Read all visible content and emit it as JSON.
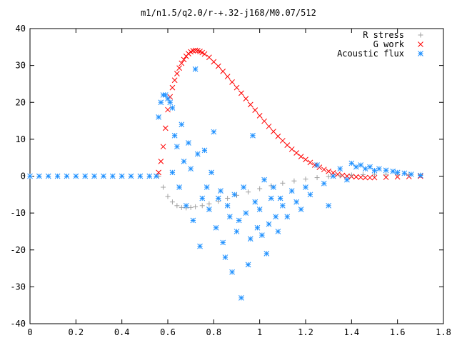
{
  "chart_data": {
    "type": "scatter",
    "title": "m1/n1.5/q2.0/r-+.32-j168/M0.07/512",
    "xlabel": "",
    "ylabel": "",
    "xlim": [
      0,
      1.8
    ],
    "ylim": [
      -40,
      40
    ],
    "x_ticks": [
      0,
      0.2,
      0.4,
      0.6,
      0.8,
      1,
      1.2,
      1.4,
      1.6,
      1.8
    ],
    "x_tick_labels": [
      "0",
      "0.2",
      "0.4",
      "0.6",
      "0.8",
      "1",
      "1.2",
      "1.4",
      "1.6",
      "1.8"
    ],
    "y_ticks": [
      -40,
      -30,
      -20,
      -10,
      0,
      10,
      20,
      30,
      40
    ],
    "y_tick_labels": [
      "-40",
      "-30",
      "-20",
      "-10",
      "0",
      "10",
      "20",
      "30",
      "40"
    ],
    "grid": false,
    "legend_position": "top-right",
    "series": [
      {
        "name": "R stress",
        "marker": "plus",
        "color": "#a0a0a0",
        "x": [
          0.56,
          0.58,
          0.6,
          0.62,
          0.64,
          0.66,
          0.68,
          0.7,
          0.72,
          0.75,
          0.78,
          0.82,
          0.86,
          0.9,
          0.95,
          1.0,
          1.05,
          1.1,
          1.15,
          1.2,
          1.25,
          1.3,
          1.35,
          1.4,
          1.45,
          1.5,
          1.55,
          1.6,
          1.65,
          1.7
        ],
        "y": [
          0.0,
          -3.0,
          -5.5,
          -7.0,
          -8.0,
          -8.5,
          -8.6,
          -8.5,
          -8.3,
          -8.0,
          -7.5,
          -6.8,
          -6.0,
          -5.2,
          -4.3,
          -3.4,
          -2.6,
          -1.9,
          -1.3,
          -0.8,
          -0.4,
          -0.1,
          0.1,
          0.3,
          0.4,
          0.5,
          0.5,
          0.5,
          0.4,
          0.3
        ]
      },
      {
        "name": "G work",
        "marker": "cross",
        "color": "#ff0000",
        "x": [
          0.56,
          0.57,
          0.58,
          0.59,
          0.6,
          0.61,
          0.62,
          0.63,
          0.64,
          0.65,
          0.66,
          0.67,
          0.68,
          0.69,
          0.7,
          0.71,
          0.72,
          0.73,
          0.74,
          0.75,
          0.76,
          0.78,
          0.8,
          0.82,
          0.84,
          0.86,
          0.88,
          0.9,
          0.92,
          0.94,
          0.96,
          0.98,
          1.0,
          1.02,
          1.04,
          1.06,
          1.08,
          1.1,
          1.12,
          1.14,
          1.16,
          1.18,
          1.2,
          1.22,
          1.24,
          1.26,
          1.28,
          1.3,
          1.32,
          1.34,
          1.36,
          1.38,
          1.4,
          1.42,
          1.44,
          1.46,
          1.48,
          1.5,
          1.55,
          1.6,
          1.65,
          1.7
        ],
        "y": [
          1.0,
          4.0,
          8.0,
          13.0,
          18.0,
          21.5,
          24.0,
          26.0,
          27.8,
          29.3,
          30.6,
          31.6,
          32.5,
          33.2,
          33.7,
          34.0,
          34.1,
          34.0,
          33.8,
          33.5,
          33.1,
          32.2,
          31.0,
          29.8,
          28.4,
          27.0,
          25.5,
          24.0,
          22.5,
          21.0,
          19.4,
          17.9,
          16.4,
          14.9,
          13.5,
          12.1,
          10.8,
          9.6,
          8.4,
          7.3,
          6.3,
          5.3,
          4.5,
          3.7,
          3.0,
          2.4,
          1.8,
          1.3,
          0.9,
          0.5,
          0.2,
          0.0,
          -0.1,
          -0.2,
          -0.3,
          -0.4,
          -0.4,
          -0.4,
          -0.3,
          -0.2,
          -0.1,
          0.0
        ]
      },
      {
        "name": "Acoustic flux",
        "marker": "star",
        "color": "#1e90ff",
        "x": [
          0.0,
          0.04,
          0.08,
          0.12,
          0.16,
          0.2,
          0.24,
          0.28,
          0.32,
          0.36,
          0.4,
          0.44,
          0.48,
          0.52,
          0.55,
          0.56,
          0.57,
          0.58,
          0.59,
          0.6,
          0.61,
          0.62,
          0.63,
          0.64,
          0.62,
          0.65,
          0.66,
          0.67,
          0.68,
          0.69,
          0.7,
          0.71,
          0.72,
          0.73,
          0.74,
          0.75,
          0.76,
          0.77,
          0.78,
          0.79,
          0.8,
          0.81,
          0.82,
          0.83,
          0.84,
          0.85,
          0.86,
          0.87,
          0.88,
          0.89,
          0.9,
          0.91,
          0.92,
          0.93,
          0.94,
          0.95,
          0.96,
          0.97,
          0.98,
          0.99,
          1.0,
          1.01,
          1.02,
          1.03,
          1.04,
          1.05,
          1.06,
          1.07,
          1.08,
          1.09,
          1.1,
          1.12,
          1.14,
          1.16,
          1.18,
          1.2,
          1.22,
          1.25,
          1.28,
          1.3,
          1.32,
          1.35,
          1.38,
          1.4,
          1.42,
          1.44,
          1.46,
          1.48,
          1.5,
          1.52,
          1.55,
          1.58,
          1.6,
          1.63,
          1.66,
          1.7
        ],
        "y": [
          0.0,
          0.0,
          0.0,
          0.0,
          0.0,
          0.0,
          0.0,
          0.0,
          0.0,
          0.0,
          0.0,
          0.0,
          0.0,
          0.0,
          0.0,
          16.0,
          20.0,
          22.0,
          22.0,
          21.0,
          20.0,
          18.5,
          11.0,
          8.0,
          1.0,
          -3.0,
          14.0,
          4.0,
          -8.0,
          9.0,
          2.0,
          -12.0,
          29.0,
          6.0,
          -19.0,
          -6.0,
          7.0,
          -3.0,
          -9.0,
          1.0,
          12.0,
          -14.0,
          -6.0,
          -4.0,
          -18.0,
          -22.0,
          -8.0,
          -11.0,
          -26.0,
          -5.0,
          -15.0,
          -12.0,
          -33.0,
          -3.0,
          -10.0,
          -24.0,
          -17.0,
          11.0,
          -7.0,
          -14.0,
          -9.0,
          -16.0,
          -1.0,
          -21.0,
          -13.0,
          -6.0,
          -3.0,
          -11.0,
          -15.0,
          -6.0,
          -8.0,
          -11.0,
          -4.0,
          -7.0,
          -9.0,
          -3.0,
          -5.0,
          3.0,
          -2.0,
          -8.0,
          0.0,
          2.0,
          -1.0,
          3.5,
          2.5,
          3.0,
          2.0,
          2.5,
          1.5,
          2.0,
          1.6,
          1.3,
          1.0,
          0.8,
          0.5,
          0.2
        ]
      }
    ]
  }
}
